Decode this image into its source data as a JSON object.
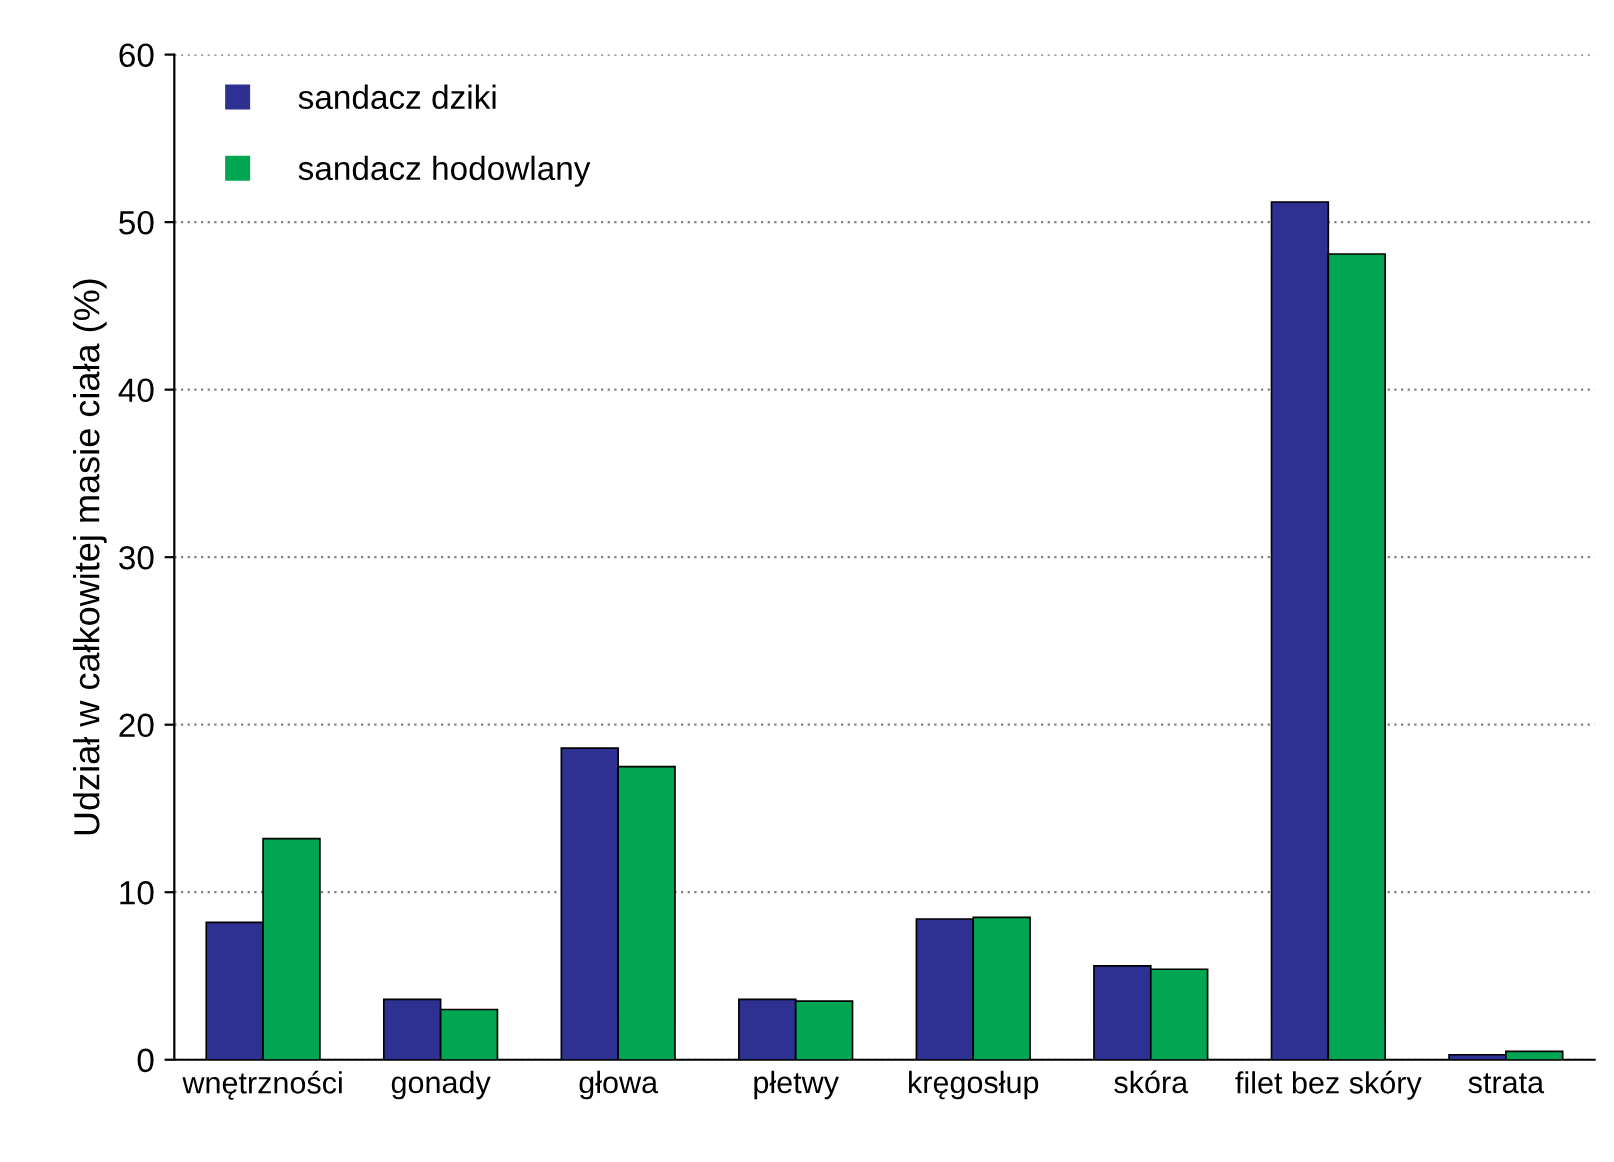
{
  "chart_data": {
    "type": "bar",
    "ylabel": "Udział w całkowitej masie ciała (%)",
    "categories": [
      "wnętrzności",
      "gonady",
      "głowa",
      "płetwy",
      "kręgosłup",
      "skóra",
      "filet bez skóry",
      "strata"
    ],
    "series": [
      {
        "name": "sandacz dziki",
        "color": "#2e3192",
        "values": [
          8.2,
          3.6,
          18.6,
          3.6,
          8.4,
          5.6,
          51.2,
          0.3
        ]
      },
      {
        "name": "sandacz hodowlany",
        "color": "#00a651",
        "values": [
          13.2,
          3.0,
          17.5,
          3.5,
          8.5,
          5.4,
          48.1,
          0.5
        ]
      }
    ],
    "ylim": [
      0,
      60
    ],
    "yticks": [
      0,
      10,
      20,
      30,
      40,
      50,
      60
    ],
    "grid": "y",
    "legend": "top left"
  }
}
